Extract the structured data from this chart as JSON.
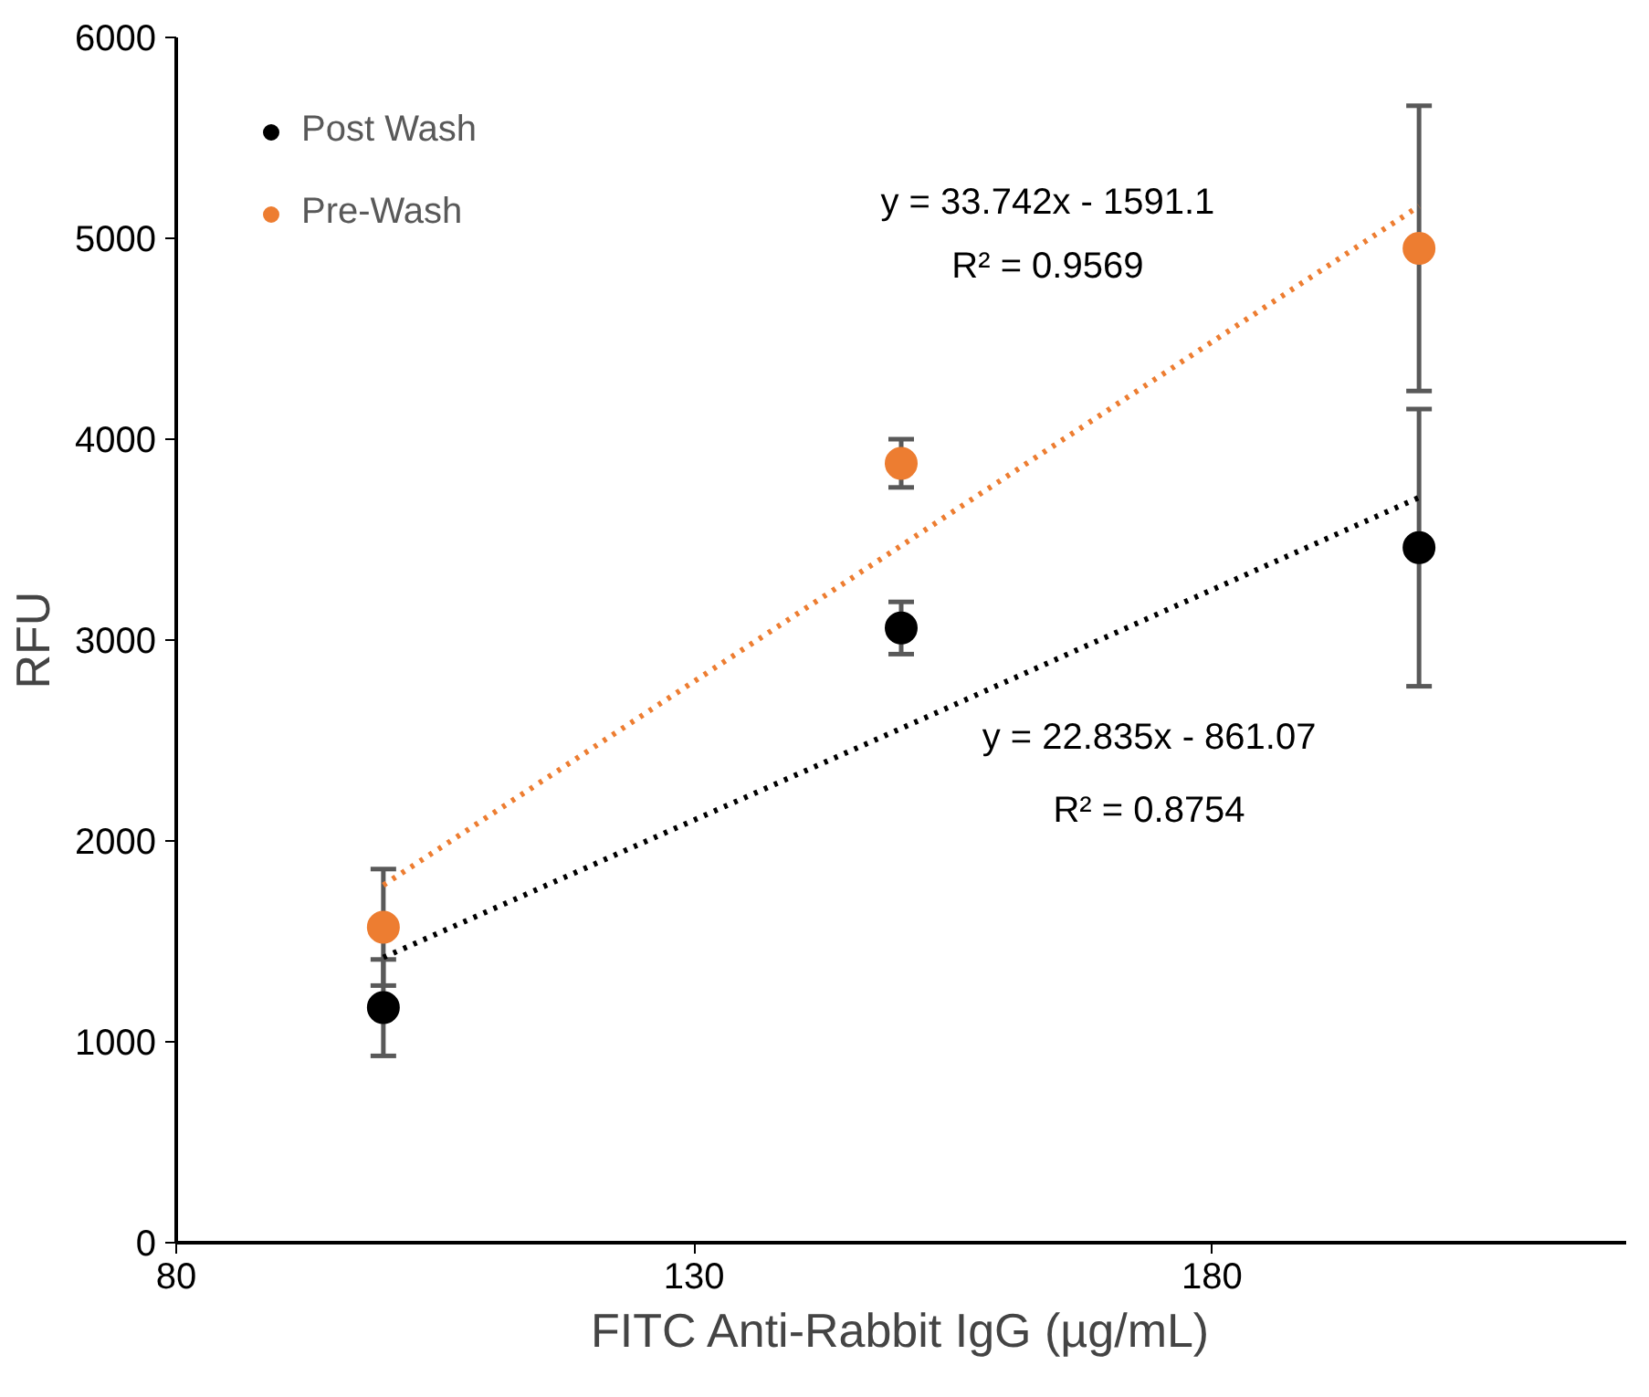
{
  "chart_data": {
    "type": "scatter",
    "xlabel": "FITC Anti-Rabbit IgG (µg/mL)",
    "ylabel": "RFU",
    "xlim": [
      80,
      220
    ],
    "xticks": [
      80,
      130,
      180
    ],
    "ylim": [
      0,
      6000
    ],
    "yticks": [
      0,
      1000,
      2000,
      3000,
      4000,
      5000,
      6000
    ],
    "x": [
      100,
      150,
      200
    ],
    "marker": "circle",
    "grid": false,
    "legend": "top left",
    "series": [
      {
        "name": "Post Wash",
        "color": "#000000",
        "values": [
          1170,
          3060,
          3460
        ],
        "errors": [
          240,
          130,
          690
        ]
      },
      {
        "name": "Pre-Wash",
        "color": "#ed7d31",
        "values": [
          1570,
          3880,
          4950
        ],
        "errors": [
          290,
          120,
          710
        ]
      },
      {
        "type": "line",
        "marker": "none",
        "line_style": "dotted",
        "color": "#000000",
        "values": [
          1420,
          2560,
          3710
        ]
      },
      {
        "type": "line",
        "marker": "none",
        "line_style": "dotted",
        "color": "#ed7d31",
        "values": [
          1780,
          3470,
          5160
        ]
      }
    ],
    "annotations": [
      "y = 33.742x - 1591.1",
      "R² = 0.9569",
      "y = 22.835x - 861.07",
      "R² = 0.8754"
    ]
  }
}
